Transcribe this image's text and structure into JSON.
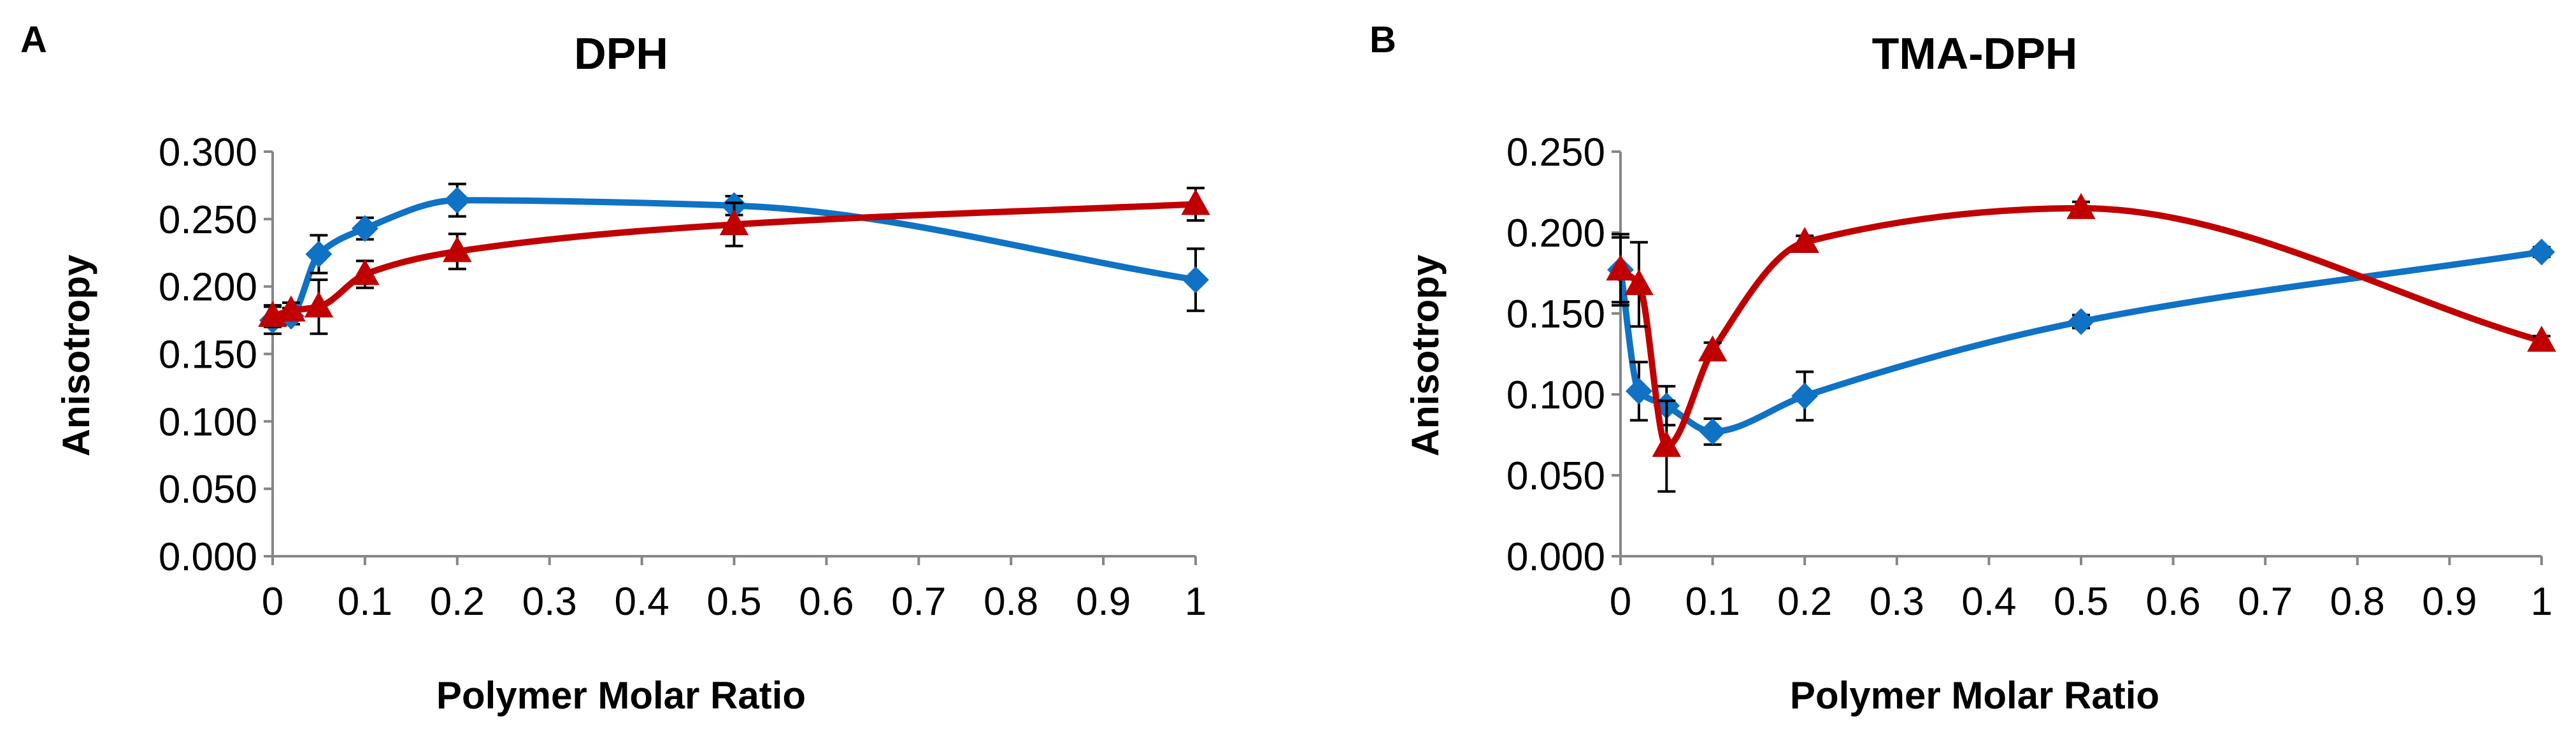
{
  "figure": {
    "colors": {
      "blue": "#0f72c4",
      "red": "#c00000",
      "axis": "#868686",
      "error_bar": "#000000"
    }
  },
  "chart_data": [
    {
      "panel": "A",
      "type": "line",
      "title": "DPH",
      "xlabel": "Polymer Molar Ratio",
      "ylabel": "Anisotropy",
      "x_ticks": [
        0,
        0.1,
        0.2,
        0.3,
        0.4,
        0.5,
        0.6,
        0.7,
        0.8,
        0.9,
        1
      ],
      "x_tick_labels": [
        "0",
        "0.1",
        "0.2",
        "0.3",
        "0.4",
        "0.5",
        "0.6",
        "0.7",
        "0.8",
        "0.9",
        "1"
      ],
      "xlim": [
        0,
        1
      ],
      "y_ticks": [
        0,
        0.05,
        0.1,
        0.15,
        0.2,
        0.25,
        0.3
      ],
      "y_tick_labels": [
        "0.000",
        "0.050",
        "0.100",
        "0.150",
        "0.200",
        "0.250",
        "0.300"
      ],
      "ylim": [
        0,
        0.3
      ],
      "grid": false,
      "series": [
        {
          "name": "blue series",
          "color": "#0f72c4",
          "marker": "diamond",
          "x": [
            0,
            0.02,
            0.05,
            0.1,
            0.2,
            0.5,
            1
          ],
          "y": [
            0.175,
            0.178,
            0.224,
            0.243,
            0.264,
            0.26,
            0.205
          ],
          "err": [
            0.01,
            0.006,
            0.014,
            0.008,
            0.012,
            0.007,
            0.023
          ]
        },
        {
          "name": "red series",
          "color": "#c00000",
          "marker": "triangle",
          "x": [
            0,
            0.02,
            0.05,
            0.1,
            0.2,
            0.5,
            1
          ],
          "y": [
            0.178,
            0.182,
            0.185,
            0.209,
            0.226,
            0.246,
            0.261
          ],
          "err": [
            0.008,
            0.006,
            0.02,
            0.01,
            0.013,
            0.016,
            0.012
          ]
        }
      ]
    },
    {
      "panel": "B",
      "type": "line",
      "title": "TMA-DPH",
      "xlabel": "Polymer Molar Ratio",
      "ylabel": "Anisotropy",
      "x_ticks": [
        0,
        0.1,
        0.2,
        0.3,
        0.4,
        0.5,
        0.6,
        0.7,
        0.8,
        0.9,
        1
      ],
      "x_tick_labels": [
        "0",
        "0.1",
        "0.2",
        "0.3",
        "0.4",
        "0.5",
        "0.6",
        "0.7",
        "0.8",
        "0.9",
        "1"
      ],
      "xlim": [
        0,
        1
      ],
      "y_ticks": [
        0,
        0.05,
        0.1,
        0.15,
        0.2,
        0.25
      ],
      "y_tick_labels": [
        "0.000",
        "0.050",
        "0.100",
        "0.150",
        "0.200",
        "0.250"
      ],
      "ylim": [
        0,
        0.25
      ],
      "grid": false,
      "series": [
        {
          "name": "blue series",
          "color": "#0f72c4",
          "marker": "diamond",
          "x": [
            0,
            0.02,
            0.05,
            0.1,
            0.2,
            0.5,
            1
          ],
          "y": [
            0.177,
            0.102,
            0.093,
            0.077,
            0.099,
            0.145,
            0.188
          ],
          "err": [
            0.022,
            0.018,
            0.012,
            0.008,
            0.015,
            0.004,
            0.003
          ]
        },
        {
          "name": "red series",
          "color": "#c00000",
          "marker": "triangle",
          "x": [
            0,
            0.02,
            0.05,
            0.1,
            0.2,
            0.5,
            1
          ],
          "y": [
            0.177,
            0.168,
            0.068,
            0.127,
            0.194,
            0.215,
            0.133
          ],
          "err": [
            0.02,
            0.026,
            0.028,
            0.005,
            0.004,
            0.004,
            0.003
          ]
        }
      ]
    }
  ]
}
